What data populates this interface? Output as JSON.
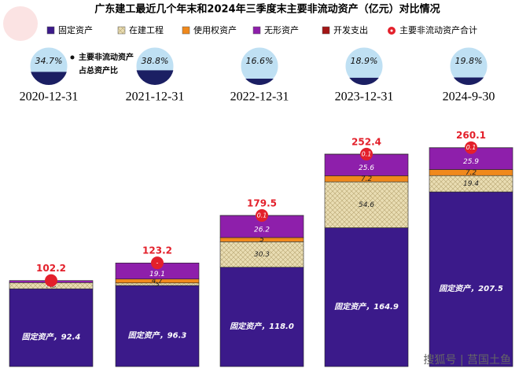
{
  "chart_data": {
    "type": "stacked-bar",
    "title": "广东建工最近几个年末和2024年三季度末主要非流动资产（亿元）对比情况",
    "categories": [
      "2020-12-31",
      "2021-12-31",
      "2022-12-31",
      "2023-12-31",
      "2024-9-30"
    ],
    "series": [
      {
        "name": "固定资产",
        "color": "#3b1a8a",
        "values": [
          92.4,
          96.3,
          118.0,
          164.9,
          207.5
        ],
        "value_labels": [
          "固定资产，92.4",
          "固定资产，96.3",
          "固定资产，118.0",
          "固定资产，164.9",
          "固定资产，207.5"
        ]
      },
      {
        "name": "在建工程",
        "color": "#e9ddb3",
        "values": [
          7.3,
          3.0,
          30.3,
          54.6,
          19.4
        ]
      },
      {
        "name": "使用权资产",
        "color": "#f0891c",
        "values": [
          null,
          4.7,
          5.0,
          7.2,
          7.2
        ]
      },
      {
        "name": "无形资产",
        "color": "#8e1fab",
        "values": [
          2.5,
          19.1,
          26.2,
          25.6,
          25.9
        ]
      },
      {
        "name": "开发支出",
        "color": "#a31616",
        "values": [
          null,
          null,
          0.1,
          0.1,
          0.1
        ],
        "value_labels": [
          null,
          "-",
          "0.1",
          "0.1",
          "0.1"
        ]
      }
    ],
    "total": {
      "name": "主要非流动资产合计",
      "color": "#e3202b",
      "values": [
        102.2,
        123.2,
        179.5,
        252.4,
        260.1
      ]
    },
    "share": {
      "name_lines": [
        "主要非流动资产",
        "占总资产比"
      ],
      "values": [
        34.7,
        38.8,
        16.6,
        18.9,
        19.8
      ],
      "value_labels": [
        "34.7%",
        "38.8%",
        "16.6%",
        "18.9%",
        "19.8%"
      ]
    },
    "watermark": "搜狐号 | 莒国土鱼"
  }
}
